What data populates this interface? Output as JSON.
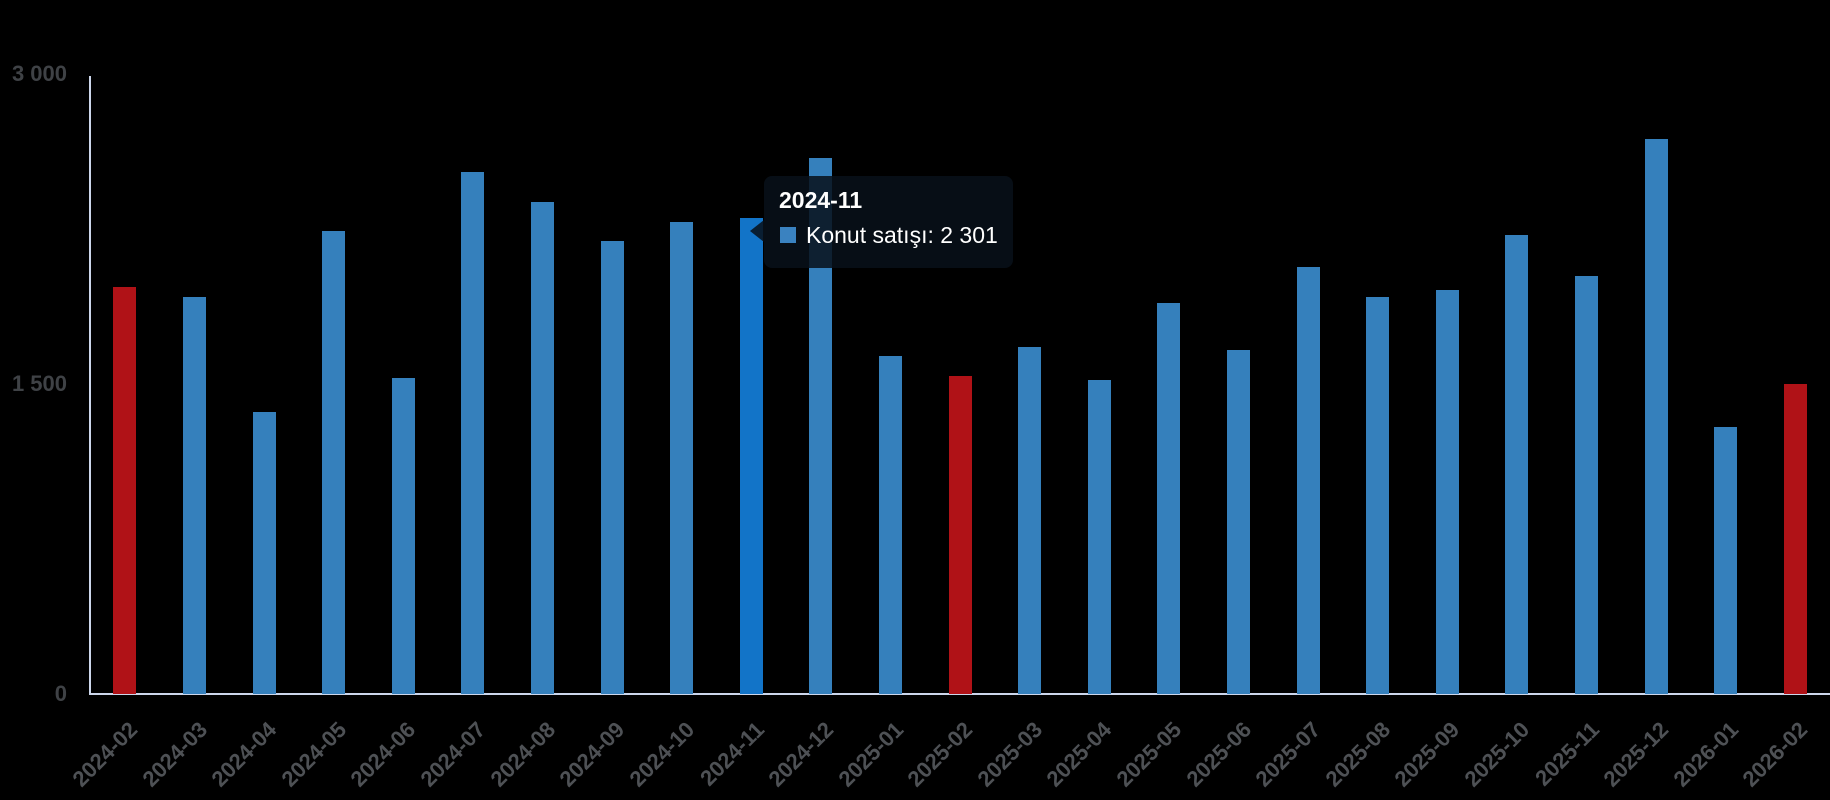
{
  "chart_data": {
    "type": "bar",
    "title": "",
    "xlabel": "",
    "ylabel": "",
    "categories": [
      "2024-02",
      "2024-03",
      "2024-04",
      "2024-05",
      "2024-06",
      "2024-07",
      "2024-08",
      "2024-09",
      "2024-10",
      "2024-11",
      "2024-12",
      "2025-01",
      "2025-02",
      "2025-03",
      "2025-04",
      "2025-05",
      "2025-06",
      "2025-07",
      "2025-08",
      "2025-09",
      "2025-10",
      "2025-11",
      "2025-12",
      "2026-01",
      "2026-02"
    ],
    "series": [
      {
        "name": "Konut satışı",
        "values": [
          1970,
          1920,
          1365,
          2240,
          1530,
          2525,
          2380,
          2190,
          2285,
          2301,
          2595,
          1635,
          1540,
          1680,
          1520,
          1890,
          1665,
          2065,
          1920,
          1955,
          2220,
          2025,
          2685,
          1290,
          1500
        ]
      }
    ],
    "ylim": [
      0,
      3000
    ],
    "yticks": [
      {
        "value": 3000,
        "label": "3 000"
      },
      {
        "value": 1500,
        "label": "1 500"
      },
      {
        "value": 0,
        "label": "0"
      }
    ],
    "grid": false,
    "legend_position": "none",
    "highlighted_category": "2024-11",
    "special_categories": [
      "2024-02",
      "2025-02",
      "2026-02"
    ],
    "colors": {
      "background": "#000000",
      "bar_default": "#3580bc",
      "bar_highlight": "#1274c8",
      "bar_special": "#b01217",
      "axis_line": "#ccd6eb",
      "ytick_label": "#3f4246",
      "xtick_label": "#4e5155",
      "tooltip_text": "#ffffff"
    }
  },
  "tooltip": {
    "title": "2024-11",
    "text": "Konut satışı: 2 301",
    "marker_color": "#3a82c0"
  }
}
